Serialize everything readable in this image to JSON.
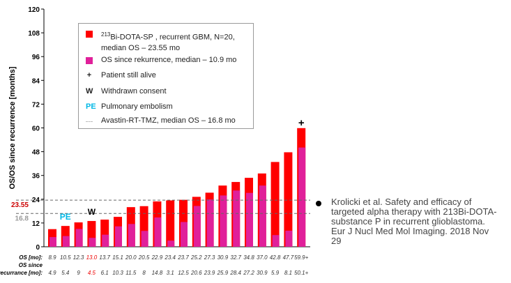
{
  "chart_data": {
    "type": "bar",
    "ylabel": "OS/OS since recurrence [months]",
    "ylim": [
      0,
      120
    ],
    "yticks": [
      0,
      12,
      24,
      36,
      48,
      60,
      72,
      84,
      96,
      108,
      120
    ],
    "series": [
      {
        "name": "213Bi-DOTA-SP , recurrent GBM, N=20, median OS – 23.55 mo",
        "color": "#ff0000",
        "values": [
          8.9,
          10.5,
          12.3,
          13.0,
          13.7,
          15.1,
          20.0,
          20.5,
          22.9,
          23.4,
          23.7,
          25.2,
          27.3,
          30.9,
          32.7,
          34.8,
          37.0,
          42.8,
          47.7,
          59.9
        ]
      },
      {
        "name": "OS since rekurrence, median – 10.9 mo",
        "color": "#e0209a",
        "values": [
          4.9,
          5.4,
          9,
          4.5,
          6.1,
          10.3,
          11.5,
          8,
          14.8,
          3.1,
          12.5,
          20.6,
          23.9,
          25.9,
          28.4,
          27.2,
          30.9,
          5.9,
          8.1,
          50.1
        ]
      }
    ],
    "row_labels": {
      "os": "OS [mo]:",
      "osr1": "OS since",
      "osr2": "recurrance [mo]:"
    },
    "os_text": [
      "8.9",
      "10.5",
      "12.3",
      "13.0",
      "13.7",
      "15.1",
      "20.0",
      "20.5",
      "22.9",
      "23.4",
      "23.7",
      "25.2",
      "27.3",
      "30.9",
      "32.7",
      "34.8",
      "37.0",
      "42.8",
      "47.7",
      "59.9+"
    ],
    "osr_text": [
      "4.9",
      "5.4",
      "9",
      "4.5",
      "6.1",
      "10.3",
      "11.5",
      "8",
      "14.8",
      "3.1",
      "12.5",
      "20.6",
      "23.9",
      "25.9",
      "28.4",
      "27.2",
      "30.9",
      "5.9",
      "8.1",
      "50.1+"
    ],
    "highlight_index": 3,
    "reference_lines": [
      {
        "value": 23.55,
        "label": "23.55",
        "color": "#cc0000"
      },
      {
        "value": 16.8,
        "label": "16.8",
        "color": "#999999"
      }
    ],
    "annotations": [
      {
        "index": 1,
        "text": "PE",
        "color": "#00b8e6"
      },
      {
        "index": 3,
        "text": "W",
        "color": "#000000"
      },
      {
        "index": 19,
        "text": "+",
        "color": "#000000"
      }
    ]
  },
  "legend": {
    "item1_sup": "213",
    "item1_a": "Bi-DOTA-SP , recurrent GBM, N=20,",
    "item1_b": "median OS – 23.55 mo",
    "item2": "OS since rekurrence, median – 10.9 mo",
    "plus_mark": "+",
    "item3": "Patient still alive",
    "w_mark": "W",
    "item4": "Withdrawn consent",
    "pe_mark": "PE",
    "item5": "Pulmonary embolism",
    "item6": "Avastin-RT-TMZ, median OS – 16.8 mo"
  },
  "reference": "Krolicki et al. Safety and efficacy of targeted alpha therapy with 213Bi-DOTA-substance P in recurrent glioblastoma. Eur J Nucl Med Mol Imaging. 2018 Nov 29"
}
